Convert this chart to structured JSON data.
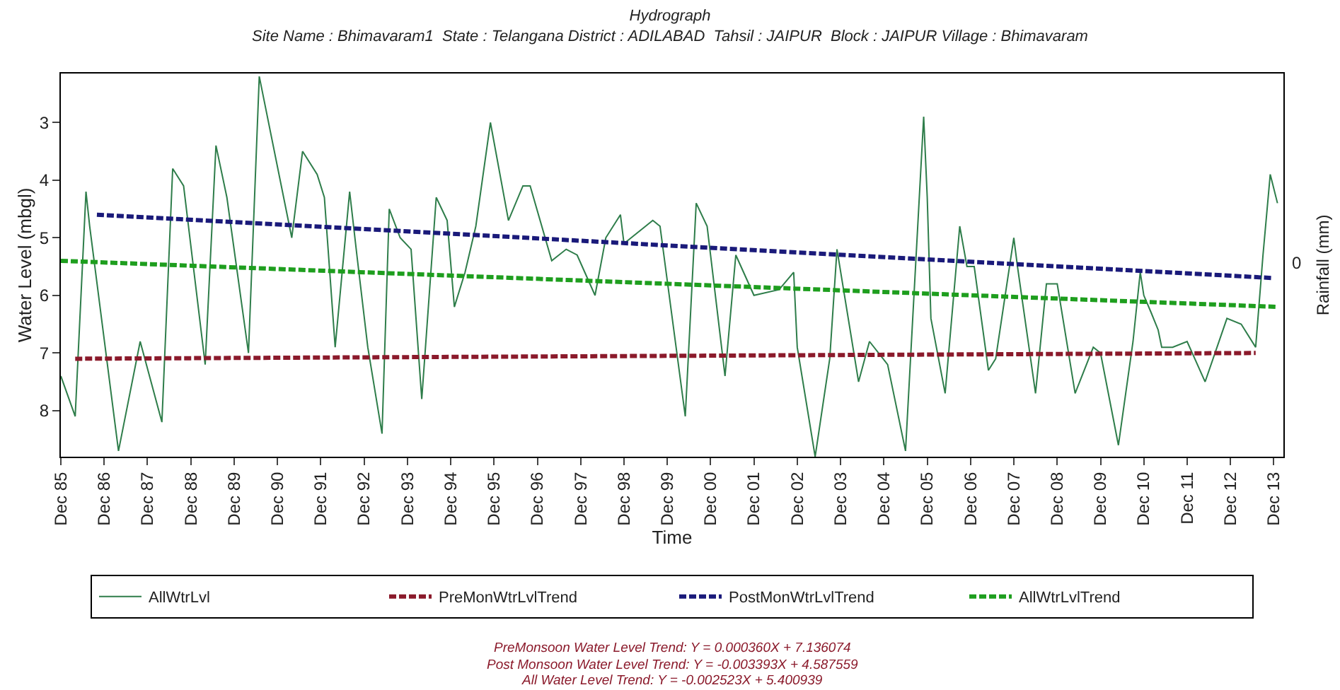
{
  "chart_data": {
    "type": "line",
    "title": "Hydrograph",
    "subtitle": "Site Name : Bhimavaram1  State : Telangana District : ADILABAD  Tahsil : JAIPUR  Block : JAIPUR Village : Bhimavaram",
    "xlabel": "Time",
    "ylabel": "Water Level (mbgl)",
    "y2label": "Rainfall (mm)",
    "xlim": [
      "1985-12-01",
      "2014-02-20"
    ],
    "xticks": [
      {
        "value": "1985-12-01",
        "label": "Dec 85"
      },
      {
        "value": "1986-12-01",
        "label": "Dec 86"
      },
      {
        "value": "1987-12-01",
        "label": "Dec 87"
      },
      {
        "value": "1988-12-01",
        "label": "Dec 88"
      },
      {
        "value": "1989-12-01",
        "label": "Dec 89"
      },
      {
        "value": "1990-12-01",
        "label": "Dec 90"
      },
      {
        "value": "1991-12-01",
        "label": "Dec 91"
      },
      {
        "value": "1992-12-01",
        "label": "Dec 92"
      },
      {
        "value": "1993-12-01",
        "label": "Dec 93"
      },
      {
        "value": "1994-12-01",
        "label": "Dec 94"
      },
      {
        "value": "1995-12-01",
        "label": "Dec 95"
      },
      {
        "value": "1996-12-01",
        "label": "Dec 96"
      },
      {
        "value": "1997-12-01",
        "label": "Dec 97"
      },
      {
        "value": "1998-12-01",
        "label": "Dec 98"
      },
      {
        "value": "1999-12-01",
        "label": "Dec 99"
      },
      {
        "value": "2000-12-01",
        "label": "Dec 00"
      },
      {
        "value": "2001-12-01",
        "label": "Dec 01"
      },
      {
        "value": "2002-12-01",
        "label": "Dec 02"
      },
      {
        "value": "2003-12-01",
        "label": "Dec 03"
      },
      {
        "value": "2004-12-01",
        "label": "Dec 04"
      },
      {
        "value": "2005-12-01",
        "label": "Dec 05"
      },
      {
        "value": "2006-12-01",
        "label": "Dec 06"
      },
      {
        "value": "2007-12-01",
        "label": "Dec 07"
      },
      {
        "value": "2008-12-01",
        "label": "Dec 08"
      },
      {
        "value": "2009-12-01",
        "label": "Dec 09"
      },
      {
        "value": "2010-12-01",
        "label": "Dec 10"
      },
      {
        "value": "2011-12-01",
        "label": "Dec 11"
      },
      {
        "value": "2012-12-01",
        "label": "Dec 12"
      },
      {
        "value": "2013-12-01",
        "label": "Dec 13"
      }
    ],
    "ylim": [
      8.8,
      2.15
    ],
    "yticks": [
      3,
      4,
      5,
      6,
      7,
      8
    ],
    "legend": "bottom",
    "marker": "none",
    "series": [
      {
        "name": "AllWtrLvl",
        "color": "#2e7d4a",
        "line_style": "solid",
        "x": [
          "1985-12",
          "1986-04",
          "1986-07",
          "1986-08",
          "1987-04",
          "1987-10",
          "1988-04",
          "1988-07",
          "1988-10",
          "1989-04",
          "1989-07",
          "1989-10",
          "1990-04",
          "1990-07",
          "1991-04",
          "1991-07",
          "1991-11",
          "1992-01",
          "1992-04",
          "1992-08",
          "1992-10",
          "1993-01",
          "1993-05",
          "1993-07",
          "1993-10",
          "1994-01",
          "1994-04",
          "1994-08",
          "1994-11",
          "1995-01",
          "1995-04",
          "1995-07",
          "1995-11",
          "1996-04",
          "1996-08",
          "1996-10",
          "1997-04",
          "1997-08",
          "1997-11",
          "1998-04",
          "1998-07",
          "1998-11",
          "1998-12",
          "1999-06",
          "1999-08",
          "1999-10",
          "2000-05",
          "2000-08",
          "2000-11",
          "2001-04",
          "2001-07",
          "2001-12",
          "2002-07",
          "2002-11",
          "2002-12",
          "2003-05",
          "2003-09",
          "2003-11",
          "2004-05",
          "2004-08",
          "2005-01",
          "2005-06",
          "2005-11",
          "2005-12",
          "2006-01",
          "2006-05",
          "2006-09",
          "2006-11",
          "2007-01",
          "2007-05",
          "2007-07",
          "2007-12",
          "2008-01",
          "2008-06",
          "2008-09",
          "2008-12",
          "2009-05",
          "2009-10",
          "2009-12",
          "2010-05",
          "2010-09",
          "2010-11",
          "2010-12",
          "2011-02",
          "2011-04",
          "2011-05",
          "2011-08",
          "2011-12",
          "2012-05",
          "2012-11",
          "2013-03",
          "2013-07",
          "2013-09",
          "2013-11",
          "2014-01"
        ],
        "values": [
          7.4,
          8.1,
          4.2,
          4.8,
          8.7,
          6.8,
          8.2,
          3.8,
          4.1,
          7.2,
          3.4,
          4.3,
          7.0,
          2.2,
          5.0,
          3.5,
          3.9,
          4.3,
          6.9,
          4.2,
          5.3,
          6.9,
          8.4,
          4.5,
          5.0,
          5.2,
          7.8,
          4.3,
          4.7,
          6.2,
          5.6,
          4.8,
          3.0,
          4.7,
          4.1,
          4.1,
          5.4,
          5.2,
          5.3,
          6.0,
          5.0,
          4.6,
          5.1,
          4.8,
          4.7,
          4.8,
          8.1,
          4.4,
          4.8,
          7.4,
          5.3,
          6.0,
          5.9,
          5.6,
          6.9,
          8.8,
          7.1,
          5.2,
          7.5,
          6.8,
          7.2,
          8.7,
          2.9,
          4.3,
          6.4,
          7.7,
          4.8,
          5.5,
          5.5,
          7.3,
          7.1,
          5.0,
          5.5,
          7.7,
          5.8,
          5.8,
          7.7,
          6.9,
          7.0,
          8.6,
          6.8,
          5.6,
          6.0,
          6.3,
          6.6,
          6.9,
          6.9,
          6.8,
          7.5,
          6.4,
          6.5,
          6.9,
          5.3,
          3.9,
          4.4
        ]
      },
      {
        "name": "PreMonWtrLvlTrend",
        "color": "#8b1a2b",
        "line_style": "dashed",
        "x": [
          "1986-04",
          "2013-07"
        ],
        "values": [
          7.1,
          7.0
        ]
      },
      {
        "name": "PostMonWtrLvlTrend",
        "color": "#1a1a7a",
        "line_style": "dashed",
        "x": [
          "1986-10",
          "2013-12"
        ],
        "values": [
          4.6,
          5.7
        ]
      },
      {
        "name": "AllWtrLvlTrend",
        "color": "#1e9e1e",
        "line_style": "dashed",
        "x": [
          "1985-12",
          "2014-01"
        ],
        "values": [
          5.4,
          6.2
        ]
      }
    ],
    "annotations": [
      "0",
      "PreMonsoon Water Level Trend: Y = 0.000360X + 7.136074",
      "Post Monsoon Water Level Trend: Y = -0.003393X + 4.587559",
      "All Water Level Trend: Y = -0.002523X + 5.400939"
    ]
  }
}
